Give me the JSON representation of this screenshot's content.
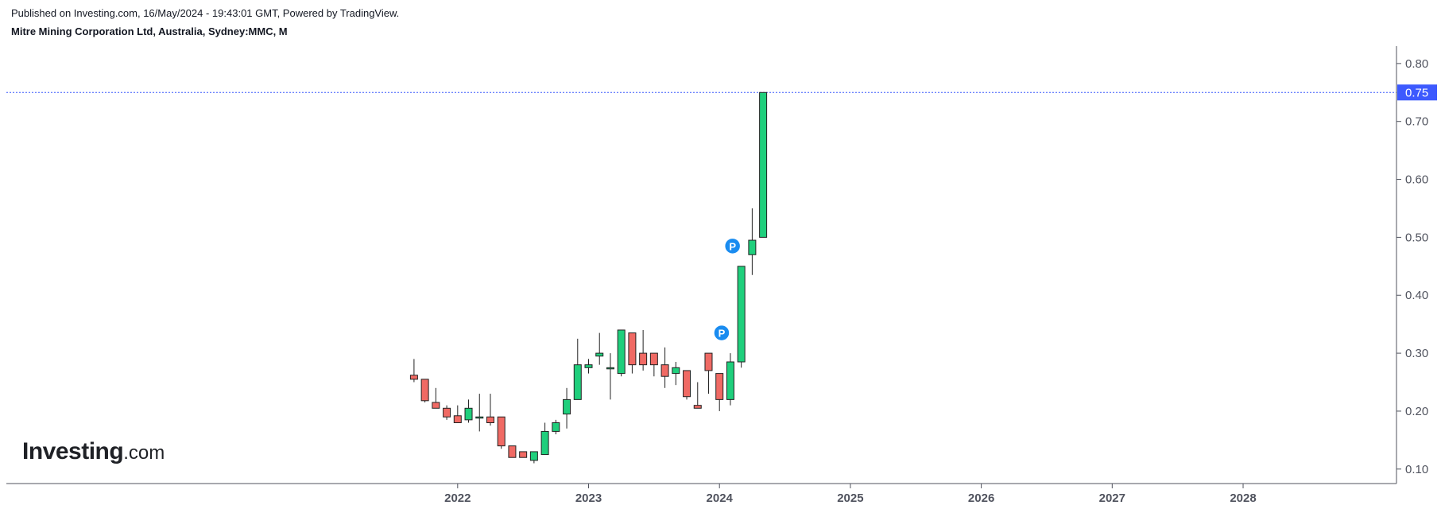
{
  "header": {
    "published": "Published on Investing.com, 16/May/2024 - 19:43:01 GMT, Powered by TradingView.",
    "instrument": "Mitre Mining Corporation Ltd, Australia, Sydney:MMC, M"
  },
  "logo": {
    "main": "Investing",
    "suffix": ".com"
  },
  "colors": {
    "up": "#1fcf7c",
    "down": "#f06a64",
    "border": "#222222",
    "marker": "#1a8cf0",
    "price_line": "#3d5afe",
    "axis": "#50535e"
  },
  "chart_data": {
    "type": "candlestick",
    "interval": "monthly",
    "ylim": [
      0.075,
      0.83
    ],
    "x_range": [
      "2021-05",
      "2028-12"
    ],
    "yticks": [
      "0.10",
      "0.20",
      "0.30",
      "0.40",
      "0.50",
      "0.60",
      "0.70",
      "0.80"
    ],
    "xticks": [
      "2022",
      "2023",
      "2024",
      "2025",
      "2026",
      "2027",
      "2028"
    ],
    "last_price": "0.75",
    "markers": [
      {
        "date": "2024-02",
        "label": "P",
        "value": 0.335
      },
      {
        "date": "2024-03",
        "label": "P",
        "value": 0.485
      }
    ],
    "candles": [
      {
        "date": "2021-09",
        "open": 0.262,
        "high": 0.29,
        "low": 0.25,
        "close": 0.255
      },
      {
        "date": "2021-10",
        "open": 0.255,
        "high": 0.255,
        "low": 0.215,
        "close": 0.218
      },
      {
        "date": "2021-11",
        "open": 0.215,
        "high": 0.24,
        "low": 0.205,
        "close": 0.205
      },
      {
        "date": "2021-12",
        "open": 0.205,
        "high": 0.21,
        "low": 0.185,
        "close": 0.19
      },
      {
        "date": "2022-01",
        "open": 0.192,
        "high": 0.21,
        "low": 0.18,
        "close": 0.18
      },
      {
        "date": "2022-02",
        "open": 0.185,
        "high": 0.22,
        "low": 0.18,
        "close": 0.205
      },
      {
        "date": "2022-03",
        "open": 0.19,
        "high": 0.23,
        "low": 0.165,
        "close": 0.19
      },
      {
        "date": "2022-04",
        "open": 0.19,
        "high": 0.23,
        "low": 0.175,
        "close": 0.18
      },
      {
        "date": "2022-05",
        "open": 0.19,
        "high": 0.19,
        "low": 0.135,
        "close": 0.14
      },
      {
        "date": "2022-06",
        "open": 0.14,
        "high": 0.14,
        "low": 0.12,
        "close": 0.12
      },
      {
        "date": "2022-07",
        "open": 0.13,
        "high": 0.13,
        "low": 0.12,
        "close": 0.12
      },
      {
        "date": "2022-08",
        "open": 0.115,
        "high": 0.13,
        "low": 0.11,
        "close": 0.13
      },
      {
        "date": "2022-09",
        "open": 0.125,
        "high": 0.18,
        "low": 0.125,
        "close": 0.165
      },
      {
        "date": "2022-10",
        "open": 0.165,
        "high": 0.185,
        "low": 0.16,
        "close": 0.18
      },
      {
        "date": "2022-11",
        "open": 0.195,
        "high": 0.24,
        "low": 0.17,
        "close": 0.22
      },
      {
        "date": "2022-12",
        "open": 0.22,
        "high": 0.325,
        "low": 0.22,
        "close": 0.28
      },
      {
        "date": "2023-01",
        "open": 0.275,
        "high": 0.29,
        "low": 0.265,
        "close": 0.28
      },
      {
        "date": "2023-02",
        "open": 0.295,
        "high": 0.335,
        "low": 0.28,
        "close": 0.3
      },
      {
        "date": "2023-03",
        "open": 0.275,
        "high": 0.3,
        "low": 0.22,
        "close": 0.275
      },
      {
        "date": "2023-04",
        "open": 0.265,
        "high": 0.34,
        "low": 0.26,
        "close": 0.34
      },
      {
        "date": "2023-05",
        "open": 0.335,
        "high": 0.335,
        "low": 0.265,
        "close": 0.28
      },
      {
        "date": "2023-06",
        "open": 0.3,
        "high": 0.34,
        "low": 0.27,
        "close": 0.28
      },
      {
        "date": "2023-07",
        "open": 0.3,
        "high": 0.3,
        "low": 0.26,
        "close": 0.28
      },
      {
        "date": "2023-08",
        "open": 0.28,
        "high": 0.31,
        "low": 0.24,
        "close": 0.26
      },
      {
        "date": "2023-09",
        "open": 0.265,
        "high": 0.285,
        "low": 0.245,
        "close": 0.275
      },
      {
        "date": "2023-10",
        "open": 0.27,
        "high": 0.27,
        "low": 0.22,
        "close": 0.225
      },
      {
        "date": "2023-11",
        "open": 0.21,
        "high": 0.25,
        "low": 0.205,
        "close": 0.205
      },
      {
        "date": "2023-12",
        "open": 0.3,
        "high": 0.3,
        "low": 0.23,
        "close": 0.27
      },
      {
        "date": "2024-01",
        "open": 0.265,
        "high": 0.265,
        "low": 0.2,
        "close": 0.22
      },
      {
        "date": "2024-02",
        "open": 0.22,
        "high": 0.3,
        "low": 0.21,
        "close": 0.285
      },
      {
        "date": "2024-03",
        "open": 0.285,
        "high": 0.45,
        "low": 0.275,
        "close": 0.45
      },
      {
        "date": "2024-04",
        "open": 0.47,
        "high": 0.55,
        "low": 0.435,
        "close": 0.495
      },
      {
        "date": "2024-05",
        "open": 0.5,
        "high": 0.75,
        "low": 0.5,
        "close": 0.75
      }
    ]
  }
}
